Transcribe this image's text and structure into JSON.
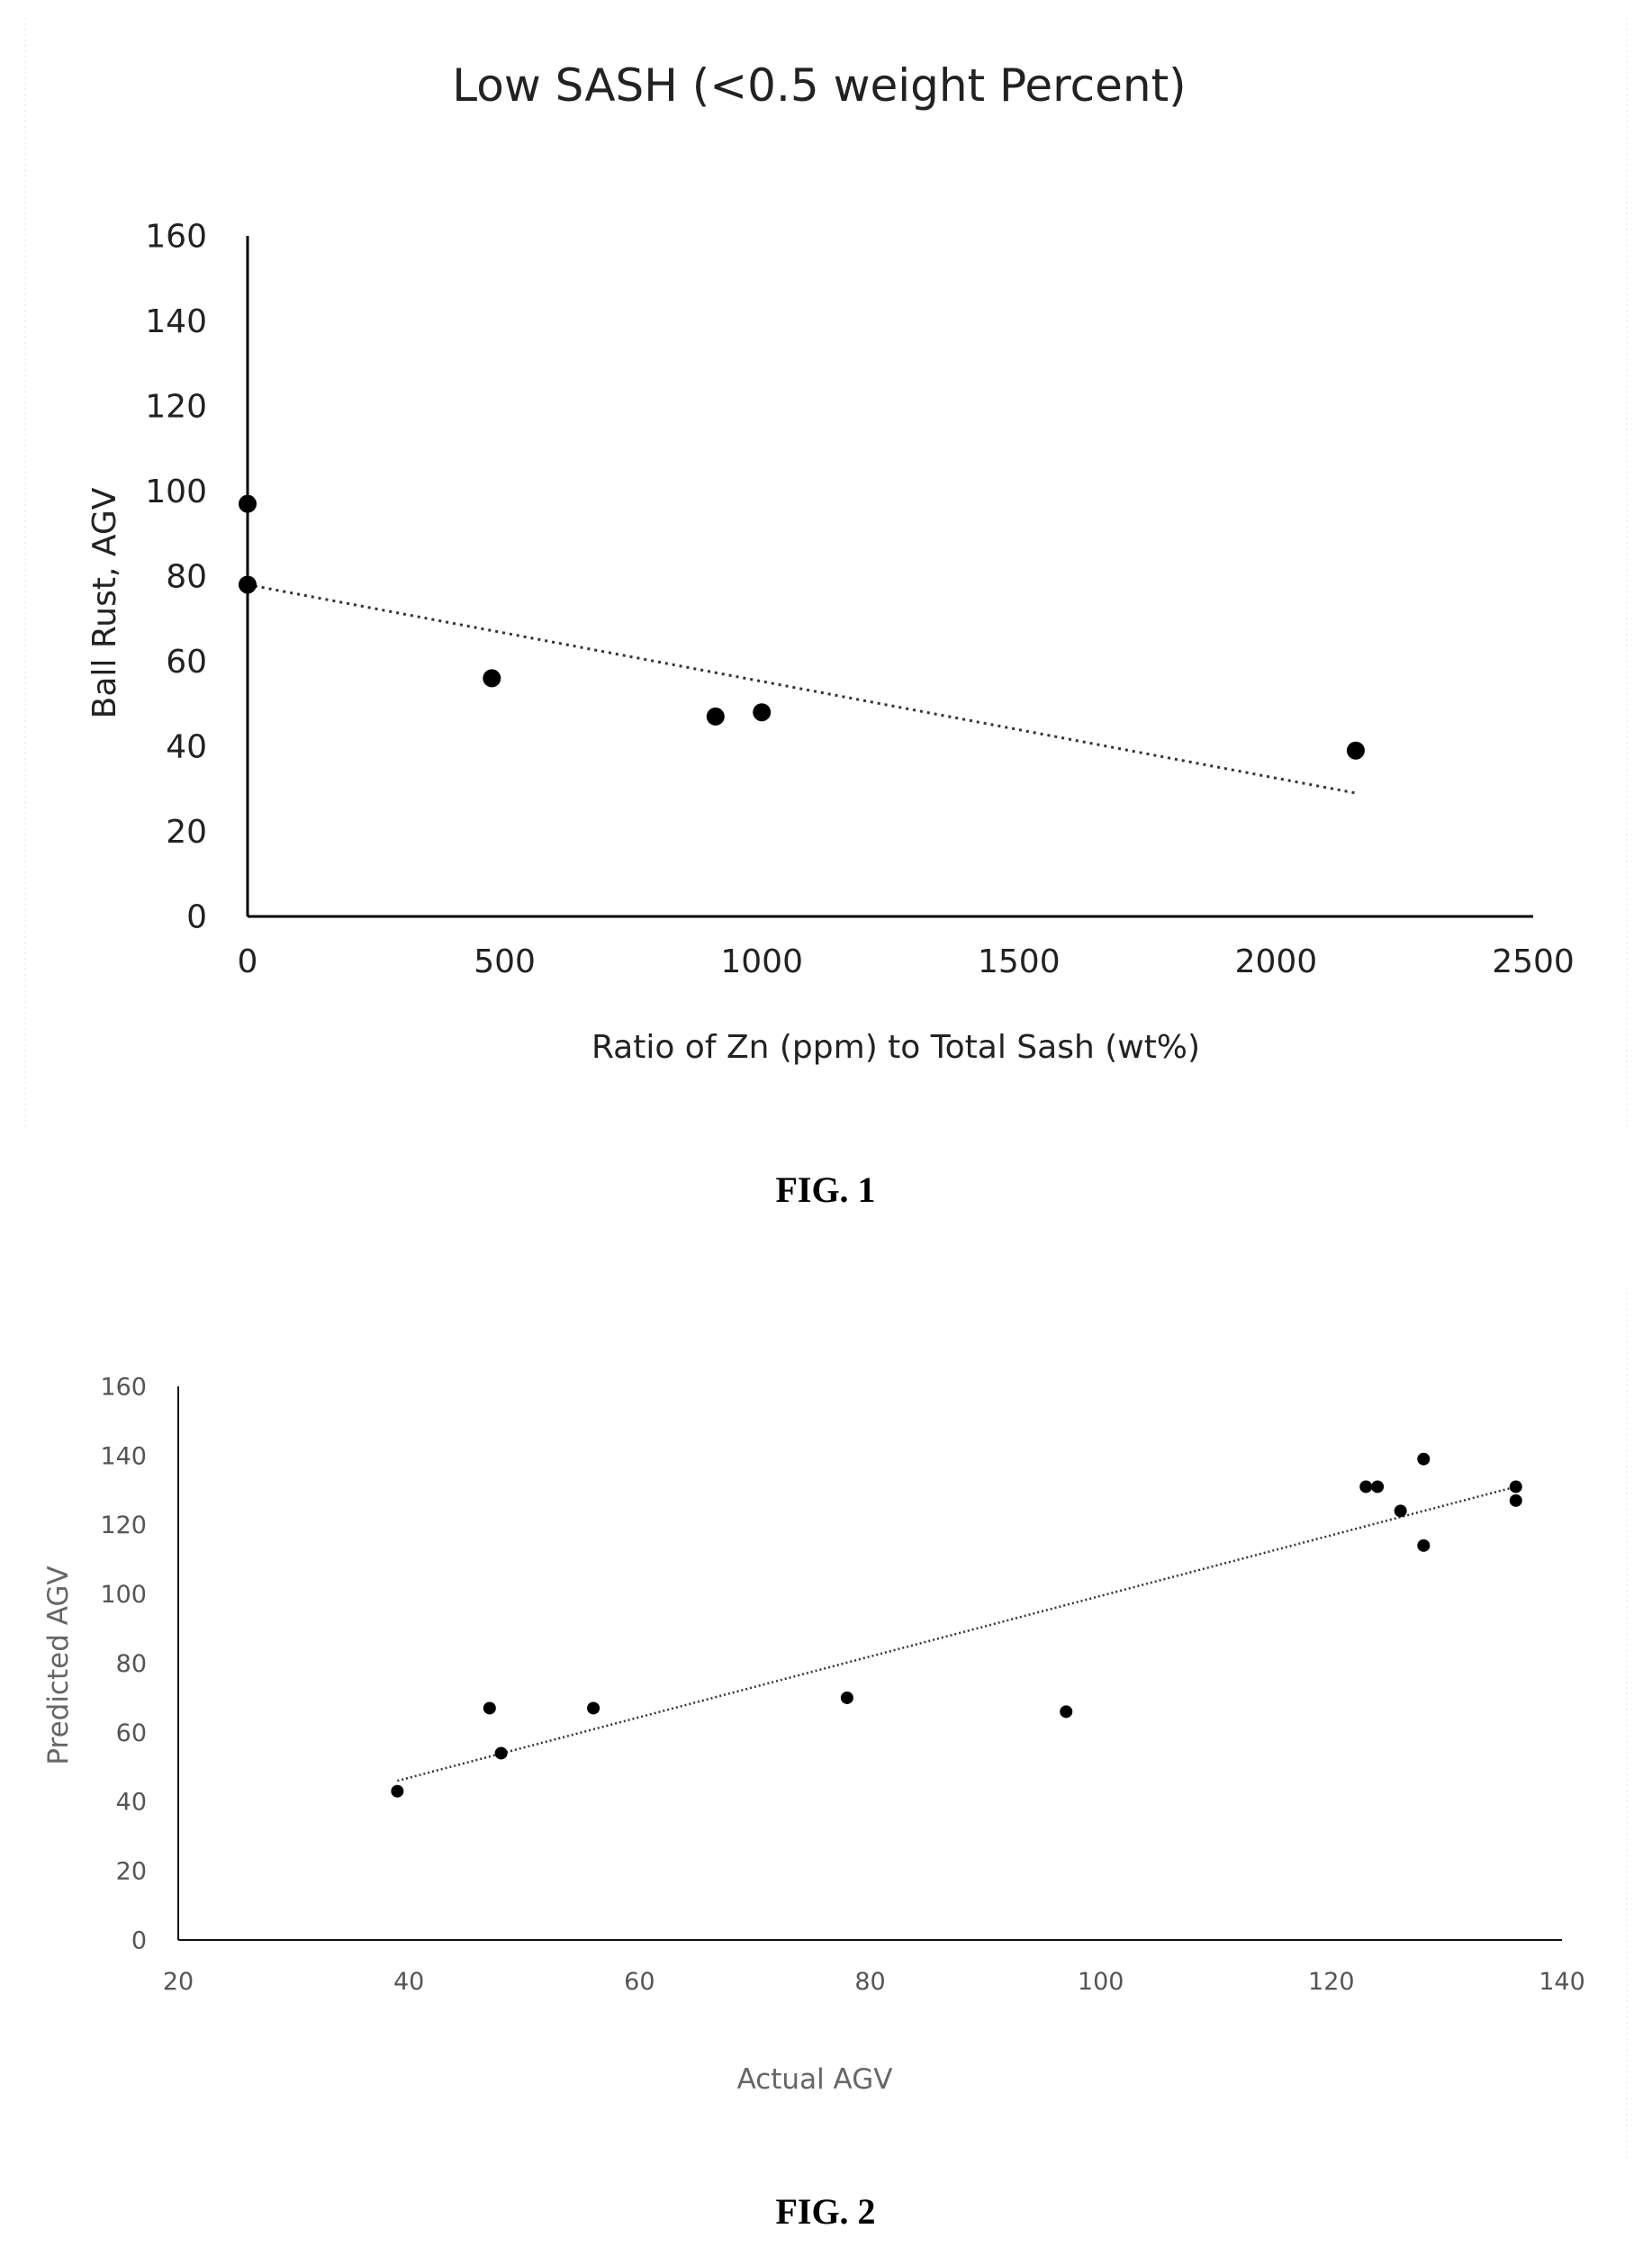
{
  "figures": [
    {
      "caption": "FIG. 1"
    },
    {
      "caption": "FIG. 2"
    }
  ],
  "chart_data": [
    {
      "type": "scatter",
      "title": "Low SASH (<0.5 weight Percent)",
      "xlabel": "Ratio of Zn (ppm) to Total Sash (wt%)",
      "ylabel": "Ball Rust, AGV",
      "xlim": [
        0,
        2500
      ],
      "ylim": [
        0,
        160
      ],
      "xticks": [
        0,
        500,
        1000,
        1500,
        2000,
        2500
      ],
      "yticks": [
        0,
        20,
        40,
        60,
        80,
        100,
        120,
        140,
        160
      ],
      "grid": false,
      "legend": "none",
      "series": [
        {
          "points": [
            [
              0,
              97
            ],
            [
              0,
              78
            ],
            [
              475,
              56
            ],
            [
              910,
              47
            ],
            [
              1000,
              48
            ],
            [
              2155,
              39
            ]
          ]
        }
      ],
      "trendline": {
        "style": "dotted",
        "from": [
          0,
          78
        ],
        "to": [
          2155,
          29
        ]
      }
    },
    {
      "type": "scatter",
      "title": "",
      "xlabel": "Actual AGV",
      "ylabel": "Predicted AGV",
      "xlim": [
        20,
        140
      ],
      "ylim": [
        0,
        160
      ],
      "xticks": [
        20,
        40,
        60,
        80,
        100,
        120,
        140
      ],
      "yticks": [
        0,
        20,
        40,
        60,
        80,
        100,
        120,
        140,
        160
      ],
      "grid": false,
      "legend": "none",
      "series": [
        {
          "points": [
            [
              39,
              43
            ],
            [
              47,
              67
            ],
            [
              48,
              54
            ],
            [
              56,
              67
            ],
            [
              78,
              70
            ],
            [
              97,
              66
            ],
            [
              123,
              131
            ],
            [
              124,
              131
            ],
            [
              126,
              124
            ],
            [
              128,
              139
            ],
            [
              128,
              114
            ],
            [
              136,
              131
            ],
            [
              136,
              127
            ]
          ]
        }
      ],
      "trendline": {
        "style": "dotted",
        "from": [
          39,
          46
        ],
        "to": [
          136,
          131
        ]
      }
    }
  ]
}
